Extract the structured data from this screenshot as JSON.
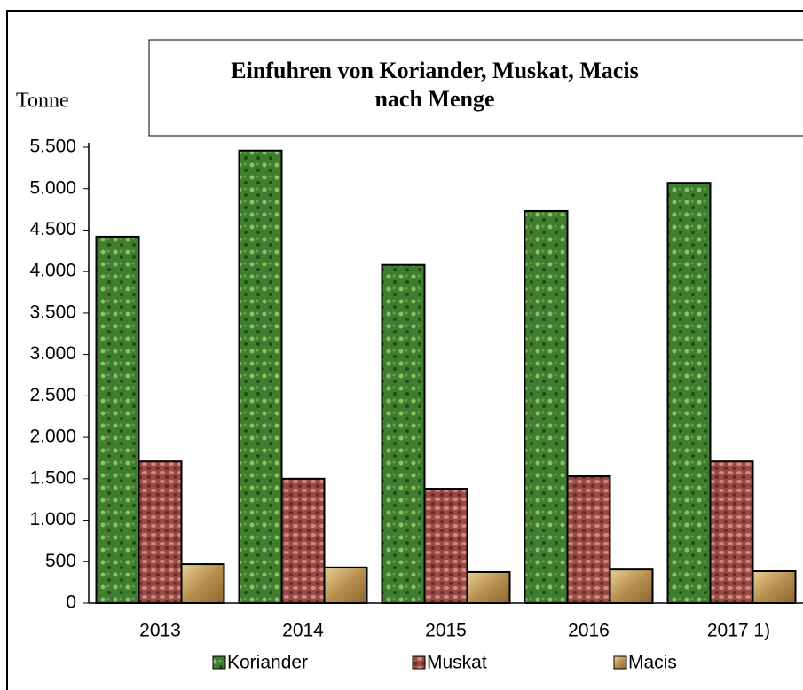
{
  "chart_data": {
    "type": "bar",
    "title": "Einfuhren von Koriander, Muskat, Macis nach Menge",
    "y_label": "Tonne",
    "categories": [
      "2013",
      "2014",
      "2015",
      "2016",
      "2017 1)"
    ],
    "series": [
      {
        "name": "Koriander",
        "color": "#3f7d2f",
        "values": [
          4420,
          5460,
          4080,
          4730,
          5070
        ]
      },
      {
        "name": "Muskat",
        "color": "#9a4a44",
        "values": [
          1710,
          1500,
          1380,
          1530,
          1710
        ]
      },
      {
        "name": "Macis",
        "color": "#c9a46a",
        "values": [
          470,
          430,
          375,
          405,
          385
        ]
      }
    ],
    "ylim": [
      0,
      5500
    ],
    "yticks": [
      0,
      500,
      {
        "value": 1000,
        "label": "1.000"
      },
      {
        "value": 1500,
        "label": "1.500"
      },
      {
        "value": 2000,
        "label": "2.000"
      },
      {
        "value": 2500,
        "label": "2.500"
      },
      {
        "value": 3000,
        "label": "3.000"
      },
      {
        "value": 3500,
        "label": "3.500"
      },
      {
        "value": 4000,
        "label": "4.000"
      },
      {
        "value": 4500,
        "label": "4.500"
      },
      {
        "value": 5000,
        "label": "5.000"
      },
      {
        "value": 5500,
        "label": "5.500"
      }
    ],
    "legend": "bottom"
  }
}
